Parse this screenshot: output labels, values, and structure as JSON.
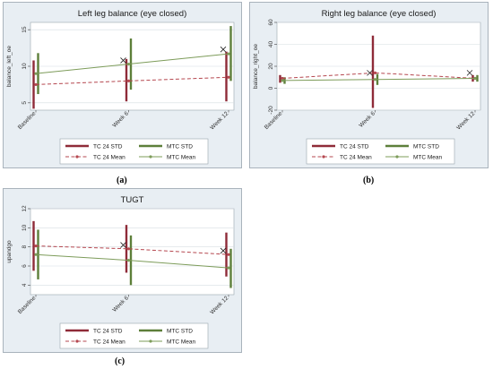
{
  "chart_data": [
    {
      "type": "line",
      "title": "Left leg balance (eye closed)",
      "ylabel": "balance_left_oe",
      "categories": [
        "Baseline",
        "Week 6",
        "Week 12"
      ],
      "ylim": [
        4,
        16
      ],
      "yticks": [
        5,
        10,
        15
      ],
      "series": [
        {
          "name": "TC 24 Mean",
          "style": "dashed",
          "color": "#b5474f",
          "values": [
            7.5,
            8.0,
            8.5
          ]
        },
        {
          "name": "MTC Mean",
          "style": "solid",
          "color": "#7d9c5a",
          "values": [
            9.0,
            10.3,
            11.7
          ]
        }
      ],
      "error_bars": [
        {
          "name": "TC 24 STD",
          "color": "#8f2b38",
          "low": [
            4.2,
            5.2,
            5.2
          ],
          "high": [
            10.8,
            11.0,
            12.0
          ]
        },
        {
          "name": "MTC STD",
          "color": "#5d7f3a",
          "low": [
            6.2,
            6.8,
            8.0
          ],
          "high": [
            11.8,
            13.8,
            15.5
          ]
        }
      ],
      "markers_x": [
        10.8,
        12.3
      ],
      "legend": [
        "TC 24 STD",
        "MTC STD",
        "TC 24 Mean",
        "MTC Mean"
      ]
    },
    {
      "type": "line",
      "title": "Right leg balance (eye closed)",
      "ylabel": "balance_right_oe",
      "categories": [
        "Baseline",
        "Week 6",
        "Week 12"
      ],
      "ylim": [
        -20,
        60
      ],
      "yticks": [
        -20,
        0,
        20,
        40,
        60
      ],
      "series": [
        {
          "name": "TC 24 Mean",
          "style": "dashed",
          "color": "#b5474f",
          "values": [
            9,
            14,
            9
          ]
        },
        {
          "name": "MTC Mean",
          "style": "solid",
          "color": "#7d9c5a",
          "values": [
            7,
            8,
            9
          ]
        }
      ],
      "error_bars": [
        {
          "name": "TC 24 STD",
          "color": "#8f2b38",
          "low": [
            5,
            -18,
            6
          ],
          "high": [
            12,
            48,
            12
          ]
        },
        {
          "name": "MTC STD",
          "color": "#5d7f3a",
          "low": [
            4,
            3,
            6
          ],
          "high": [
            10,
            13,
            12
          ]
        }
      ],
      "markers_x": [
        14,
        14
      ],
      "legend": [
        "TC 24 STD",
        "MTC STD",
        "TC 24 Mean",
        "MTC Mean"
      ]
    },
    {
      "type": "line",
      "title": "TUGT",
      "ylabel": "upandgo",
      "categories": [
        "Baseline",
        "Week 6",
        "Week 12"
      ],
      "ylim": [
        3,
        12
      ],
      "yticks": [
        4,
        6,
        8,
        10,
        12
      ],
      "series": [
        {
          "name": "TC 24 Mean",
          "style": "dashed",
          "color": "#b5474f",
          "values": [
            8.1,
            7.8,
            7.2
          ]
        },
        {
          "name": "MTC Mean",
          "style": "solid",
          "color": "#7d9c5a",
          "values": [
            7.2,
            6.6,
            5.8
          ]
        }
      ],
      "error_bars": [
        {
          "name": "TC 24 STD",
          "color": "#8f2b38",
          "low": [
            5.5,
            5.3,
            4.9
          ],
          "high": [
            10.7,
            10.3,
            9.5
          ]
        },
        {
          "name": "MTC STD",
          "color": "#5d7f3a",
          "low": [
            4.6,
            4.0,
            3.7
          ],
          "high": [
            9.8,
            9.2,
            7.8
          ]
        }
      ],
      "markers_x": [
        8.2,
        7.6
      ],
      "legend": [
        "TC 24 STD",
        "MTC STD",
        "TC 24 Mean",
        "MTC Mean"
      ]
    }
  ],
  "captions": {
    "a": "(a)",
    "b": "(b)",
    "c": "(c)"
  }
}
